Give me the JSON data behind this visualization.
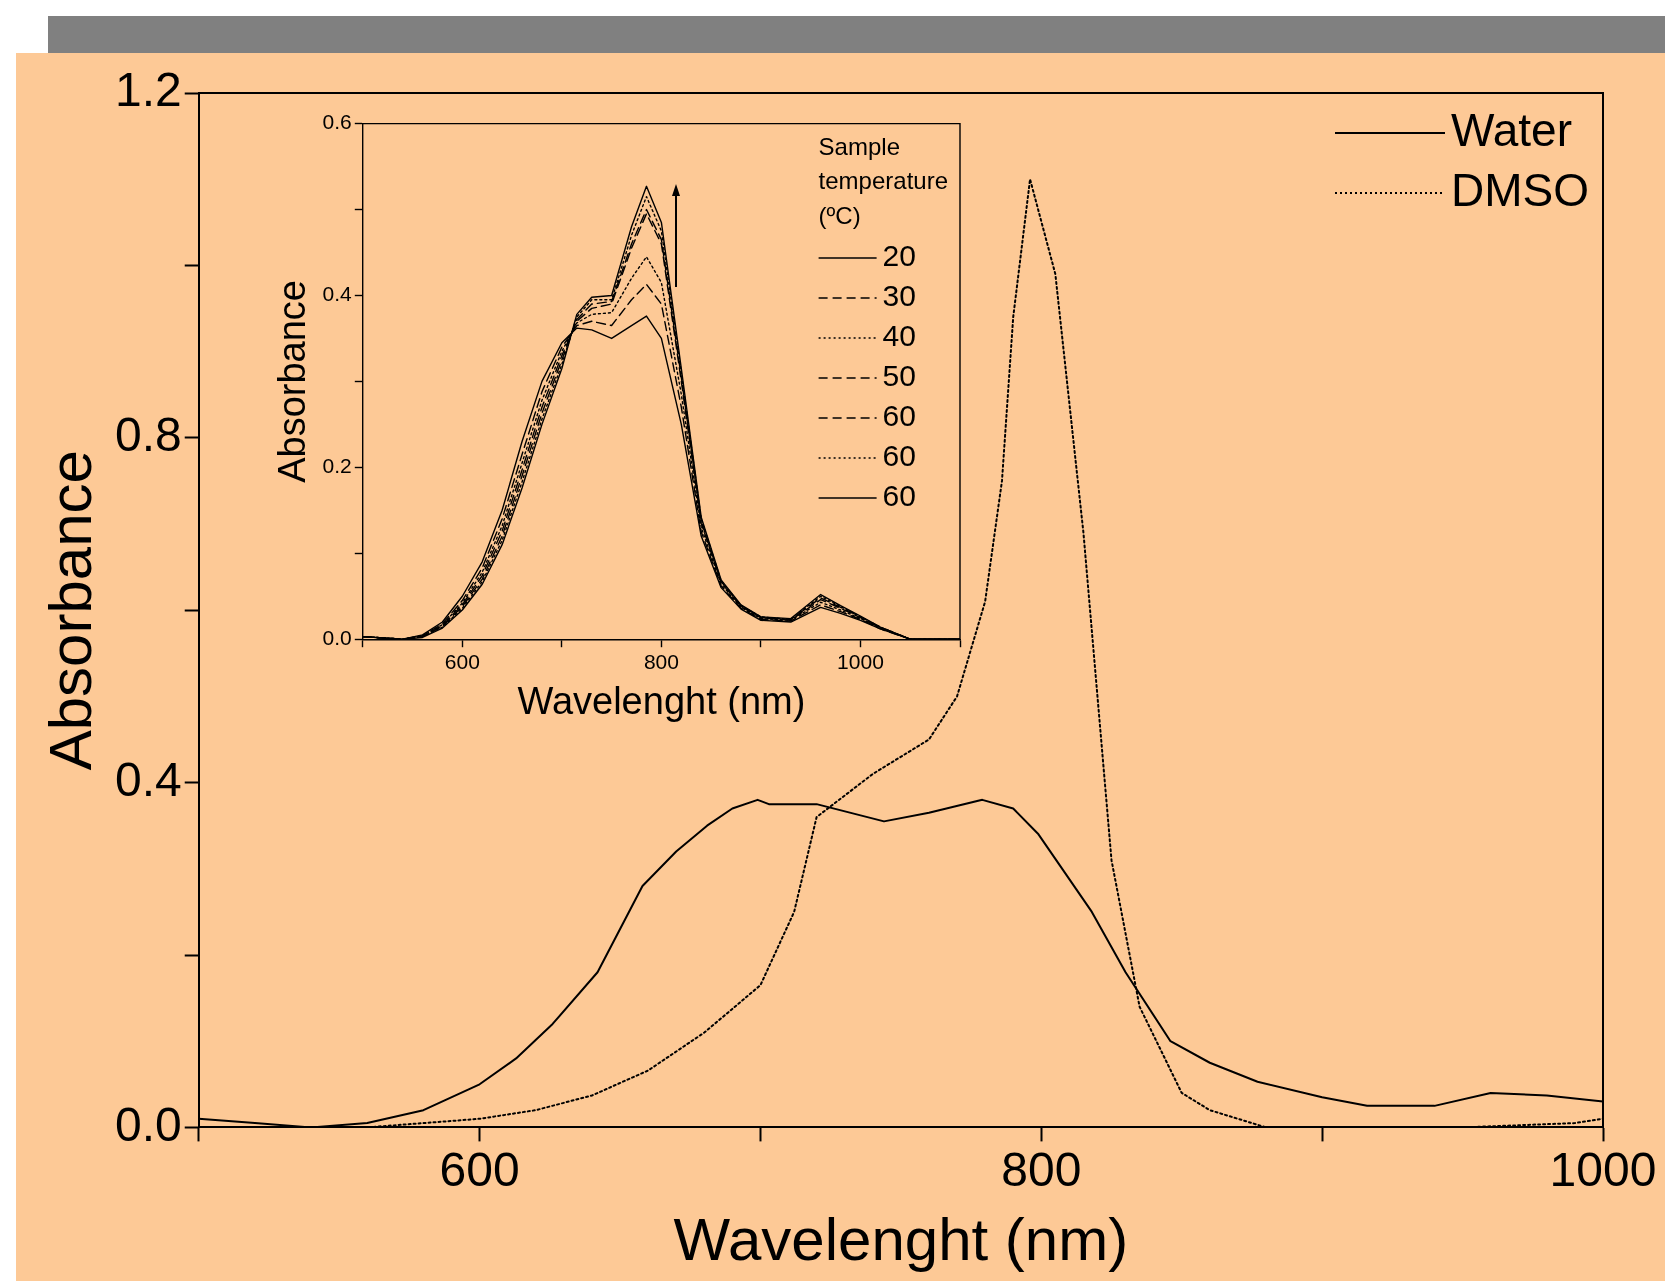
{
  "chart_data": [
    {
      "type": "line",
      "xlabel": "Wavelenght (nm)",
      "ylabel": "Absorbance",
      "xlim": [
        500,
        1000
      ],
      "ylim": [
        0,
        1.2
      ],
      "xticks": [
        {
          "value": 500,
          "label": null
        },
        600,
        {
          "value": 700,
          "label": null
        },
        800,
        {
          "value": 900,
          "label": null
        },
        1000
      ],
      "yticks": [
        {
          "value": 0,
          "label": "0.0"
        },
        {
          "value": 0.2,
          "label": null
        },
        0.4,
        {
          "value": 0.6,
          "label": null
        },
        0.8,
        {
          "value": 1,
          "label": null
        },
        1.2
      ],
      "legend": "top right",
      "marker": "none",
      "grid": false,
      "series": [
        {
          "name": "Water",
          "color": "#000000",
          "line_style": "solid",
          "x": [
            500,
            520,
            540,
            560,
            580,
            600,
            613,
            626,
            642,
            658,
            670,
            681,
            690,
            699,
            703,
            720,
            744,
            760,
            779,
            790,
            799,
            818,
            830,
            846,
            860,
            877,
            900,
            916,
            940,
            960,
            980,
            1000
          ],
          "values": [
            0.01,
            0.005,
            0.0,
            0.005,
            0.02,
            0.05,
            0.08,
            0.12,
            0.18,
            0.28,
            0.32,
            0.35,
            0.37,
            0.38,
            0.375,
            0.375,
            0.355,
            0.365,
            0.38,
            0.37,
            0.34,
            0.25,
            0.18,
            0.1,
            0.075,
            0.053,
            0.035,
            0.025,
            0.025,
            0.04,
            0.037,
            0.03
          ]
        },
        {
          "name": "DMSO",
          "color": "#000000",
          "line_style": "dotted",
          "x": [
            500,
            560,
            600,
            620,
            640,
            660,
            680,
            700,
            712,
            720,
            740,
            760,
            770,
            780,
            786,
            790,
            796,
            805,
            815,
            825,
            835,
            850,
            860,
            880,
            950,
            990,
            1000
          ],
          "values": [
            0.0,
            0.0,
            0.01,
            0.02,
            0.037,
            0.066,
            0.11,
            0.165,
            0.25,
            0.36,
            0.41,
            0.45,
            0.5,
            0.61,
            0.75,
            0.94,
            1.1,
            0.99,
            0.69,
            0.31,
            0.14,
            0.04,
            0.02,
            0.0,
            0.0,
            0.005,
            0.01
          ]
        }
      ]
    },
    {
      "type": "line",
      "xlabel": "Wavelenght (nm)",
      "ylabel": "Absorbance",
      "xlim": [
        500,
        1100
      ],
      "ylim": [
        0,
        0.6
      ],
      "xticks": [
        {
          "value": 500,
          "label": null
        },
        600,
        {
          "value": 700,
          "label": null
        },
        800,
        {
          "value": 900,
          "label": null
        },
        1000,
        {
          "value": 1100,
          "label": null
        }
      ],
      "yticks": [
        {
          "value": 0,
          "label": "0.0"
        },
        {
          "value": 0.1,
          "label": null
        },
        0.2,
        {
          "value": 0.3,
          "label": null
        },
        0.4,
        {
          "value": 0.5,
          "label": null
        },
        0.6
      ],
      "legend": "top right",
      "legend_title": "Sample temperature (ºC)",
      "marker": "none",
      "grid": false,
      "x": [
        500,
        540,
        560,
        580,
        600,
        620,
        640,
        660,
        680,
        700,
        715,
        730,
        750,
        770,
        785,
        800,
        820,
        840,
        860,
        880,
        900,
        930,
        960,
        980,
        1000,
        1020,
        1050,
        1100
      ],
      "series": [
        {
          "name": "20",
          "color": "#000000",
          "line_style": "solid",
          "values": [
            0.003,
            0.0,
            0.005,
            0.02,
            0.05,
            0.09,
            0.15,
            0.23,
            0.3,
            0.345,
            0.362,
            0.36,
            0.35,
            0.365,
            0.376,
            0.35,
            0.25,
            0.12,
            0.06,
            0.035,
            0.022,
            0.02,
            0.037,
            0.03,
            0.022,
            0.012,
            0.0,
            0.0
          ]
        },
        {
          "name": "30",
          "color": "#000000",
          "line_style": "dashed",
          "values": [
            0.003,
            0.0,
            0.004,
            0.018,
            0.045,
            0.083,
            0.14,
            0.215,
            0.288,
            0.34,
            0.365,
            0.37,
            0.365,
            0.395,
            0.413,
            0.39,
            0.27,
            0.125,
            0.062,
            0.036,
            0.023,
            0.021,
            0.04,
            0.032,
            0.023,
            0.012,
            0.0,
            0.0
          ]
        },
        {
          "name": "40",
          "color": "#000000",
          "line_style": "dotted",
          "values": [
            0.003,
            0.0,
            0.004,
            0.017,
            0.042,
            0.078,
            0.132,
            0.205,
            0.278,
            0.335,
            0.368,
            0.378,
            0.38,
            0.42,
            0.445,
            0.415,
            0.285,
            0.13,
            0.064,
            0.037,
            0.024,
            0.022,
            0.043,
            0.034,
            0.024,
            0.013,
            0.0,
            0.0
          ]
        },
        {
          "name": "50",
          "color": "#000000",
          "line_style": "dashed",
          "values": [
            0.003,
            0.0,
            0.003,
            0.016,
            0.04,
            0.074,
            0.126,
            0.197,
            0.27,
            0.33,
            0.37,
            0.385,
            0.39,
            0.455,
            0.495,
            0.46,
            0.3,
            0.135,
            0.066,
            0.038,
            0.025,
            0.022,
            0.046,
            0.036,
            0.025,
            0.013,
            0.0,
            0.0
          ]
        },
        {
          "name": "60",
          "color": "#000000",
          "line_style": "dashed",
          "values": [
            0.003,
            0.0,
            0.003,
            0.015,
            0.038,
            0.07,
            0.12,
            0.19,
            0.263,
            0.325,
            0.372,
            0.39,
            0.393,
            0.46,
            0.5,
            0.465,
            0.305,
            0.137,
            0.067,
            0.039,
            0.025,
            0.023,
            0.048,
            0.037,
            0.026,
            0.014,
            0.0,
            0.0
          ]
        },
        {
          "name": "60",
          "color": "#000000",
          "line_style": "dotted",
          "values": [
            0.003,
            0.0,
            0.003,
            0.014,
            0.036,
            0.067,
            0.115,
            0.183,
            0.256,
            0.32,
            0.375,
            0.395,
            0.395,
            0.47,
            0.515,
            0.475,
            0.31,
            0.14,
            0.068,
            0.039,
            0.026,
            0.023,
            0.05,
            0.038,
            0.026,
            0.014,
            0.0,
            0.0
          ]
        },
        {
          "name": "60",
          "color": "#000000",
          "line_style": "solid",
          "values": [
            0.003,
            0.0,
            0.002,
            0.013,
            0.034,
            0.064,
            0.11,
            0.176,
            0.25,
            0.315,
            0.378,
            0.398,
            0.4,
            0.48,
            0.527,
            0.485,
            0.315,
            0.142,
            0.069,
            0.04,
            0.026,
            0.024,
            0.052,
            0.039,
            0.027,
            0.014,
            0.0,
            0.0
          ]
        }
      ]
    }
  ]
}
